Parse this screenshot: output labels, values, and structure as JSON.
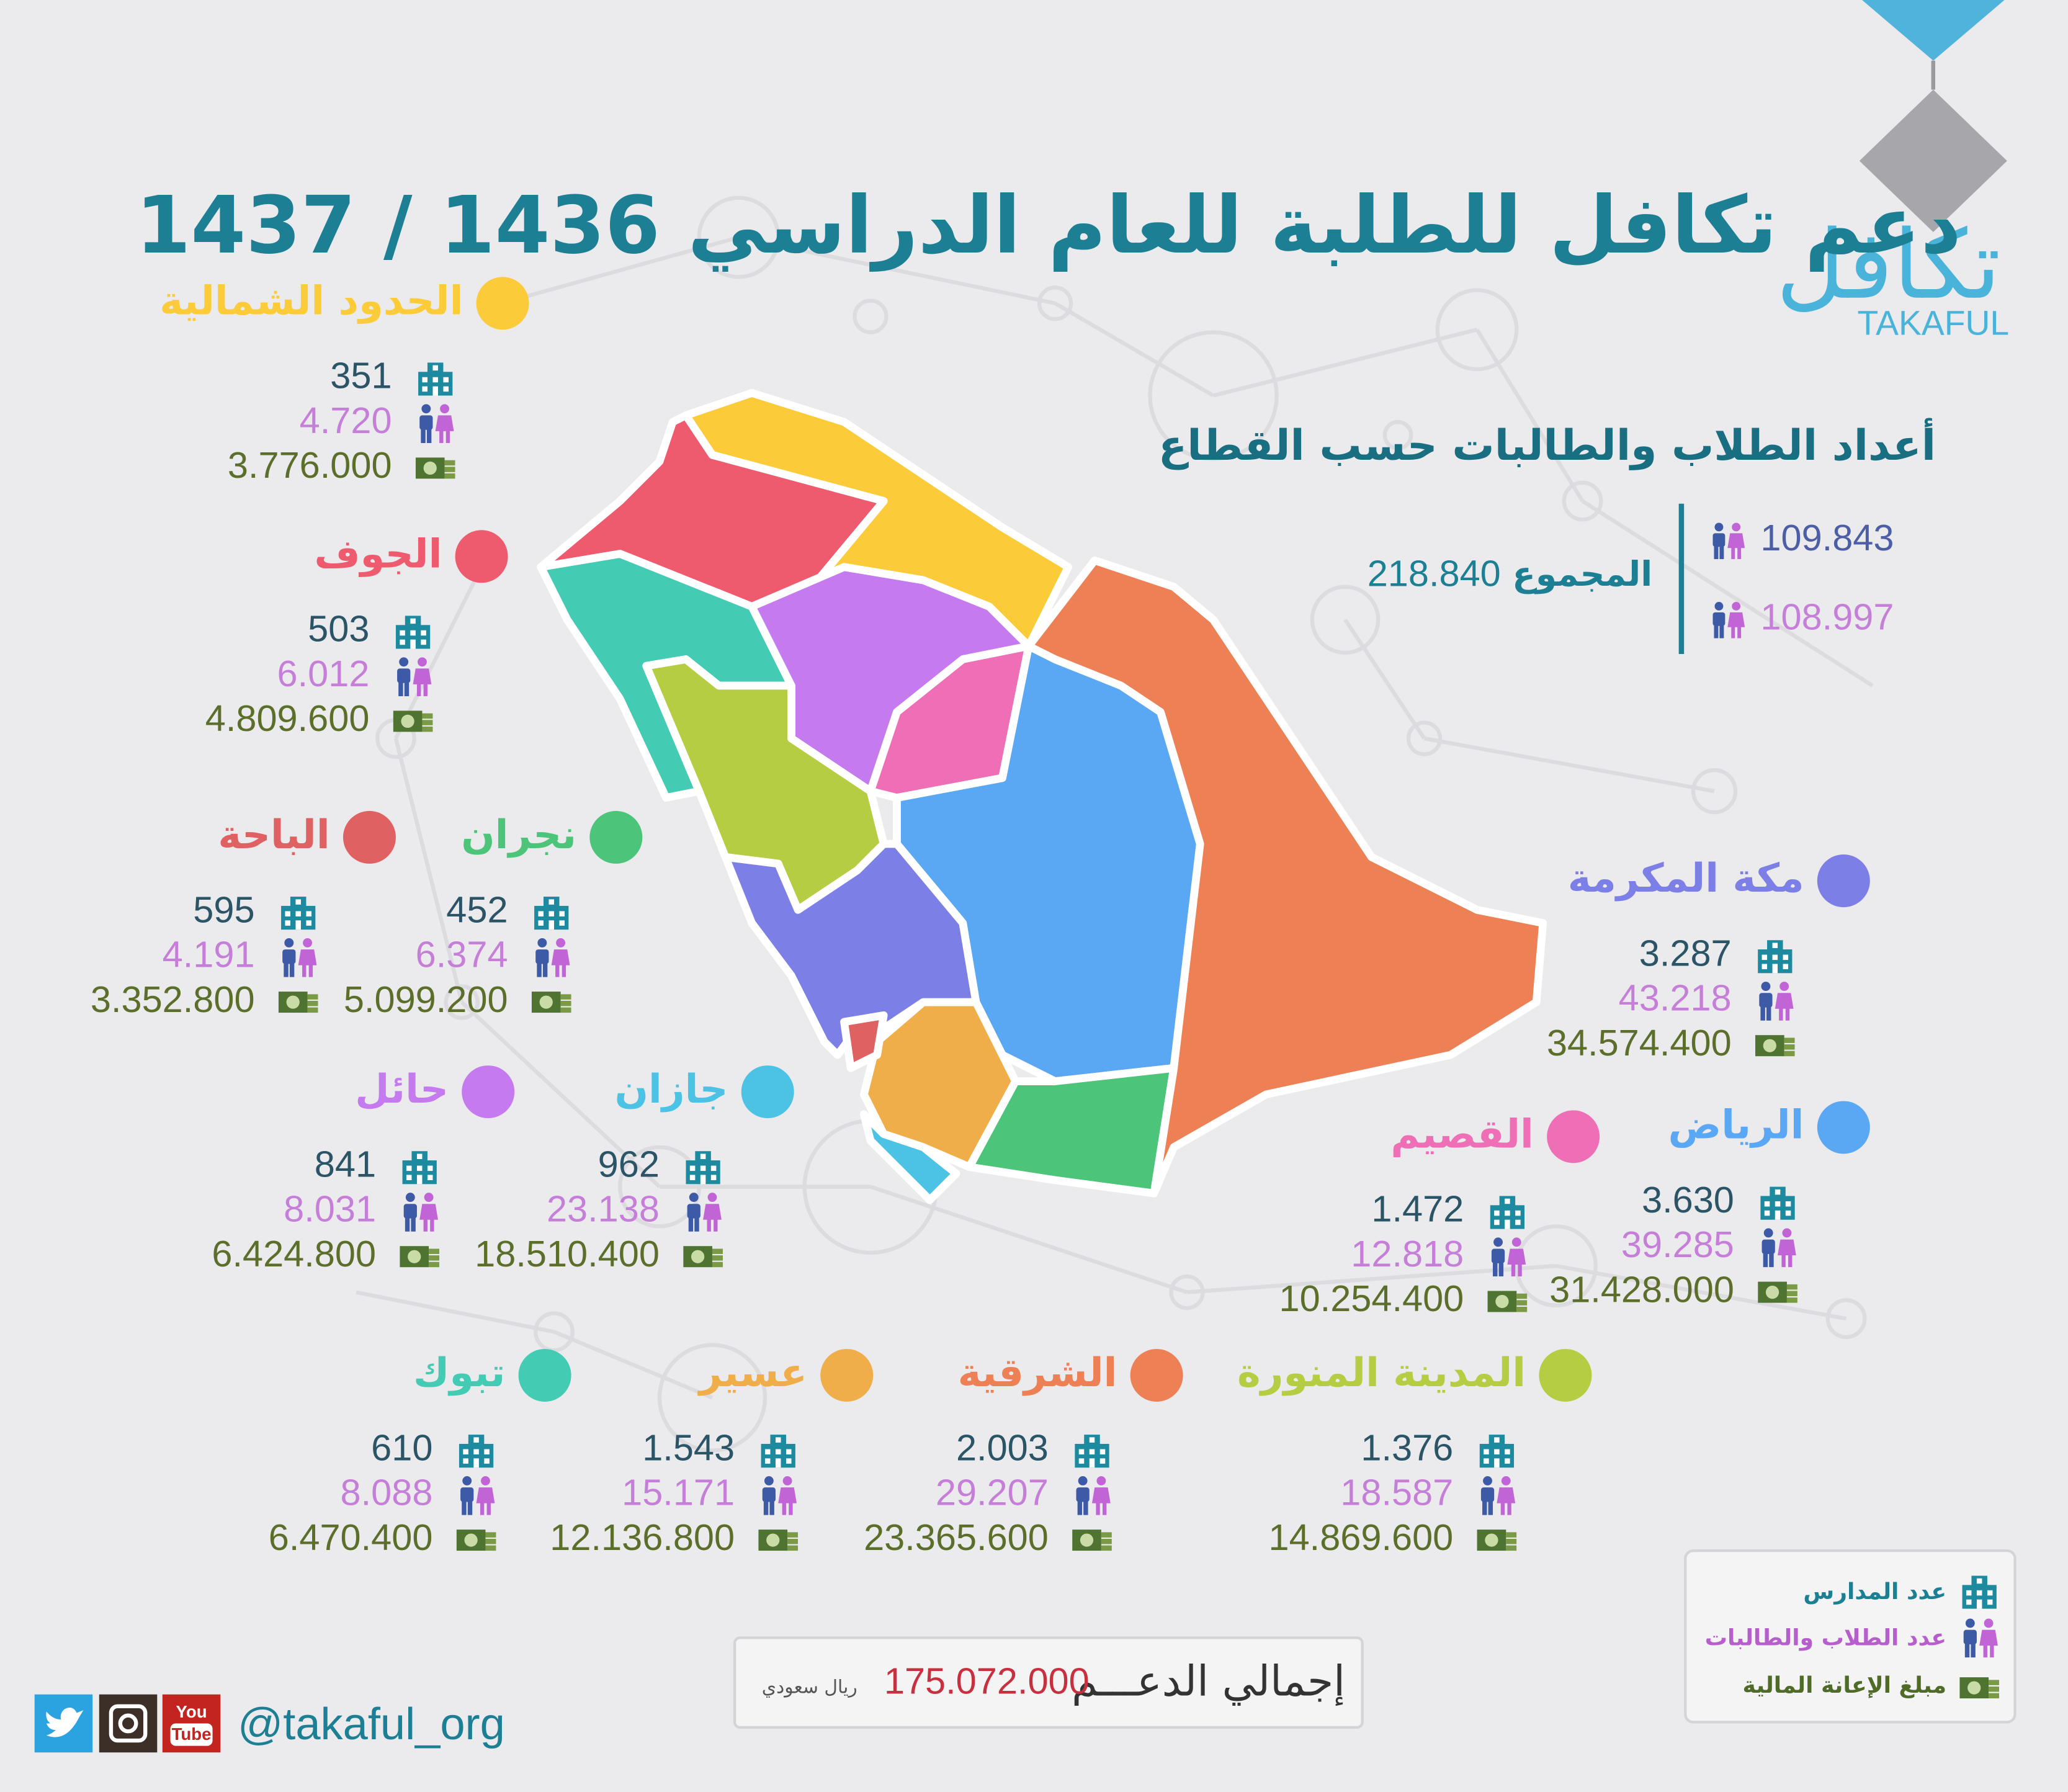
{
  "logo": {
    "arabic": "تكافل",
    "latin": "TAKAFUL"
  },
  "title": "دعم تكافل للطلبة للعام الدراسي 1436 / 1437",
  "summary": {
    "heading": "أعداد الطلاب والطالبات حسب القطاع",
    "male": "109.843",
    "female": "108.997",
    "total_label": "المجموع",
    "total": "218.840"
  },
  "regions": [
    {
      "name": "الحدود الشمالية",
      "color": "#fbcb3a",
      "schools": "351",
      "students": "4.720",
      "amount": "3.776.000"
    },
    {
      "name": "الجوف",
      "color": "#ee5b6e",
      "schools": "503",
      "students": "6.012",
      "amount": "4.809.600"
    },
    {
      "name": "الباحة",
      "color": "#df6161",
      "schools": "595",
      "students": "4.191",
      "amount": "3.352.800"
    },
    {
      "name": "نجران",
      "color": "#4cc479",
      "schools": "452",
      "students": "6.374",
      "amount": "5.099.200"
    },
    {
      "name": "مكة المكرمة",
      "color": "#7c7fe6",
      "schools": "3.287",
      "students": "43.218",
      "amount": "34.574.400"
    },
    {
      "name": "حائل",
      "color": "#c57bef",
      "schools": "841",
      "students": "8.031",
      "amount": "6.424.800"
    },
    {
      "name": "جازان",
      "color": "#4cc2e5",
      "schools": "962",
      "students": "23.138",
      "amount": "18.510.400"
    },
    {
      "name": "القصيم",
      "color": "#ee6fb6",
      "schools": "1.472",
      "students": "12.818",
      "amount": "10.254.400"
    },
    {
      "name": "الرياض",
      "color": "#5aa7f3",
      "schools": "3.630",
      "students": "39.285",
      "amount": "31.428.000"
    },
    {
      "name": "تبوك",
      "color": "#43cbb3",
      "schools": "610",
      "students": "8.088",
      "amount": "6.470.400"
    },
    {
      "name": "عسير",
      "color": "#f0ae4b",
      "schools": "1.543",
      "students": "15.171",
      "amount": "12.136.800"
    },
    {
      "name": "الشرقية",
      "color": "#ee8055",
      "schools": "2.003",
      "students": "29.207",
      "amount": "23.365.600"
    },
    {
      "name": "المدينة المنورة",
      "color": "#b4cd43",
      "schools": "1.376",
      "students": "18.587",
      "amount": "14.869.600"
    }
  ],
  "legend": {
    "schools": "عدد المدارس",
    "students": "عدد الطلاب والطالبات",
    "amount": "مبلغ الإعانة المالية"
  },
  "total_support": {
    "label": "إجمالي الدعـــم",
    "value": "175.072.000",
    "currency": "ريال سعودي"
  },
  "social": {
    "youtube_top": "You",
    "youtube_bottom": "Tube",
    "handle": "@takaful_org"
  }
}
